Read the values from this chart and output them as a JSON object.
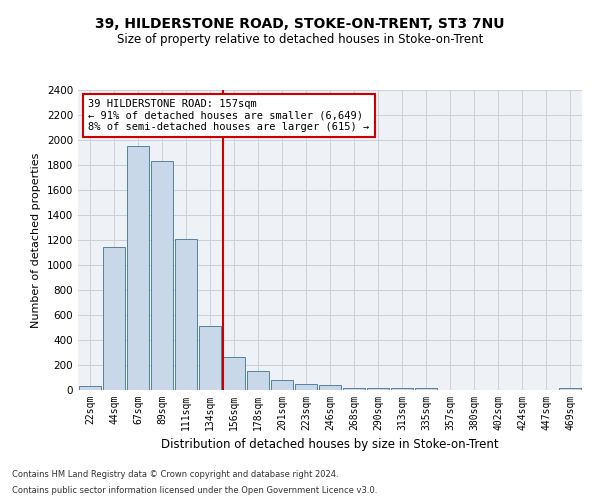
{
  "title1": "39, HILDERSTONE ROAD, STOKE-ON-TRENT, ST3 7NU",
  "title2": "Size of property relative to detached houses in Stoke-on-Trent",
  "xlabel": "Distribution of detached houses by size in Stoke-on-Trent",
  "ylabel": "Number of detached properties",
  "categories": [
    "22sqm",
    "44sqm",
    "67sqm",
    "89sqm",
    "111sqm",
    "134sqm",
    "156sqm",
    "178sqm",
    "201sqm",
    "223sqm",
    "246sqm",
    "268sqm",
    "290sqm",
    "313sqm",
    "335sqm",
    "357sqm",
    "380sqm",
    "402sqm",
    "424sqm",
    "447sqm",
    "469sqm"
  ],
  "values": [
    30,
    1145,
    1950,
    1835,
    1205,
    510,
    265,
    155,
    80,
    50,
    42,
    20,
    20,
    15,
    20,
    0,
    0,
    0,
    0,
    0,
    20
  ],
  "bar_color": "#c8d8e8",
  "bar_edge_color": "#5580a0",
  "highlight_index": 6,
  "vline_color": "#cc0000",
  "ylim": [
    0,
    2400
  ],
  "yticks": [
    0,
    200,
    400,
    600,
    800,
    1000,
    1200,
    1400,
    1600,
    1800,
    2000,
    2200,
    2400
  ],
  "annotation_title": "39 HILDERSTONE ROAD: 157sqm",
  "annotation_line1": "← 91% of detached houses are smaller (6,649)",
  "annotation_line2": "8% of semi-detached houses are larger (615) →",
  "annotation_box_color": "#cc0000",
  "footer1": "Contains HM Land Registry data © Crown copyright and database right 2024.",
  "footer2": "Contains public sector information licensed under the Open Government Licence v3.0.",
  "bg_color": "#eef2f6",
  "grid_color": "#c8d0d8"
}
